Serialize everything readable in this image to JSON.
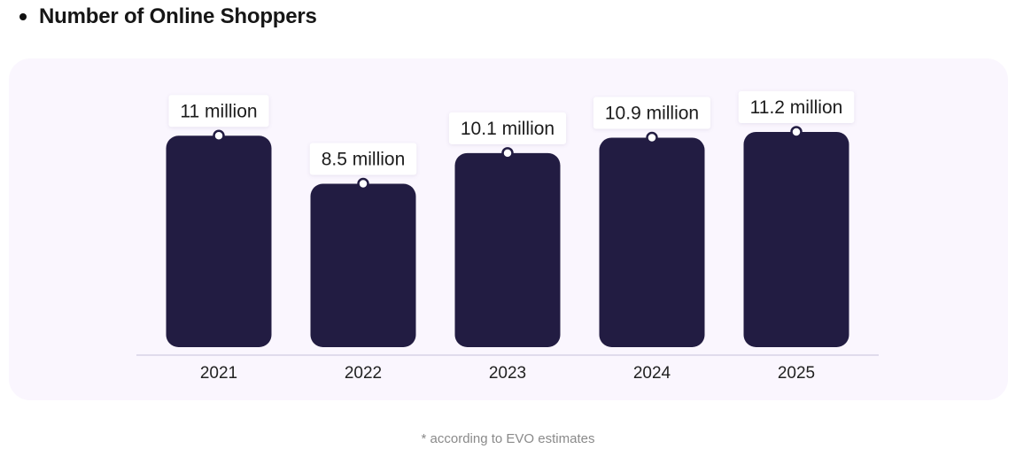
{
  "heading": {
    "bullet_icon": "bullet-dot-icon",
    "title": "Number of Online Shoppers"
  },
  "chart_data": {
    "type": "bar",
    "title": "Number of Online Shoppers",
    "categories": [
      "2021",
      "2022",
      "2023",
      "2024",
      "2025"
    ],
    "values": [
      11,
      8.5,
      10.1,
      10.9,
      11.2
    ],
    "value_labels": [
      "11 million",
      "8.5 million",
      "10.1 million",
      "10.9 million",
      "11.2 million"
    ],
    "unit": "million",
    "grid": false,
    "legend": "none",
    "colors": {
      "bar": "#221c42",
      "baseline": "#d8d2e6",
      "panel": "#faf6fe",
      "label_bg": "#ffffff",
      "tick_text": "#222222"
    }
  },
  "footnote": "* according to EVO estimates"
}
